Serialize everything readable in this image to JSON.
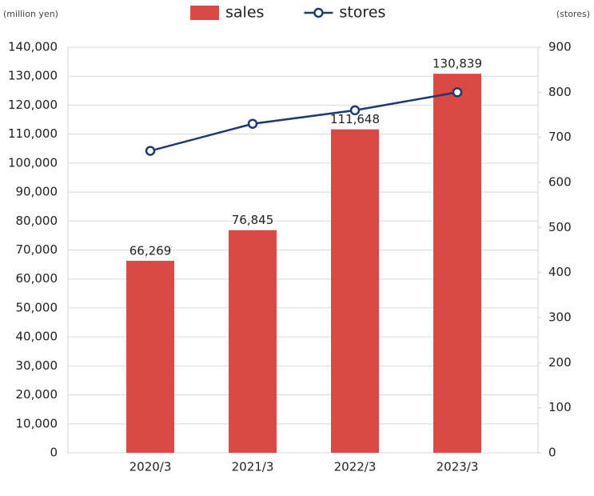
{
  "chart_data": {
    "type": "bar",
    "categories": [
      "2020/3",
      "2021/3",
      "2022/3",
      "2023/3"
    ],
    "y_label": "(million yen)",
    "y2_label": "(stores)",
    "series": [
      {
        "name": "sales",
        "type": "bar",
        "color": "#d94a45",
        "values": [
          66269,
          76845,
          111648,
          130839
        ],
        "value_labels": [
          "66,269",
          "76,845",
          "111,648",
          "130,839"
        ]
      },
      {
        "name": "stores",
        "type": "line",
        "axis": "y2",
        "color": "#1f3a6e",
        "values": [
          670,
          730,
          760,
          800
        ]
      }
    ],
    "ylim": [
      0,
      140000
    ],
    "yticks": [
      0,
      {
        "value": 10000,
        "label": "10,000"
      },
      {
        "value": 20000,
        "label": "20,000"
      },
      {
        "value": 30000,
        "label": "30,000"
      },
      {
        "value": 40000,
        "label": "40,000"
      },
      {
        "value": 50000,
        "label": "50,000"
      },
      {
        "value": 60000,
        "label": "60,000"
      },
      {
        "value": 70000,
        "label": "70,000"
      },
      {
        "value": 80000,
        "label": "80,000"
      },
      {
        "value": 90000,
        "label": "90,000"
      },
      {
        "value": 100000,
        "label": "100,000"
      },
      {
        "value": 110000,
        "label": "110,000"
      },
      {
        "value": 120000,
        "label": "120,000"
      },
      {
        "value": 130000,
        "label": "130,000"
      },
      {
        "value": 140000,
        "label": "140,000"
      }
    ],
    "y2lim": [
      0,
      900
    ],
    "y2ticks": [
      0,
      100,
      200,
      300,
      400,
      500,
      600,
      700,
      800,
      900
    ],
    "grid": true
  }
}
